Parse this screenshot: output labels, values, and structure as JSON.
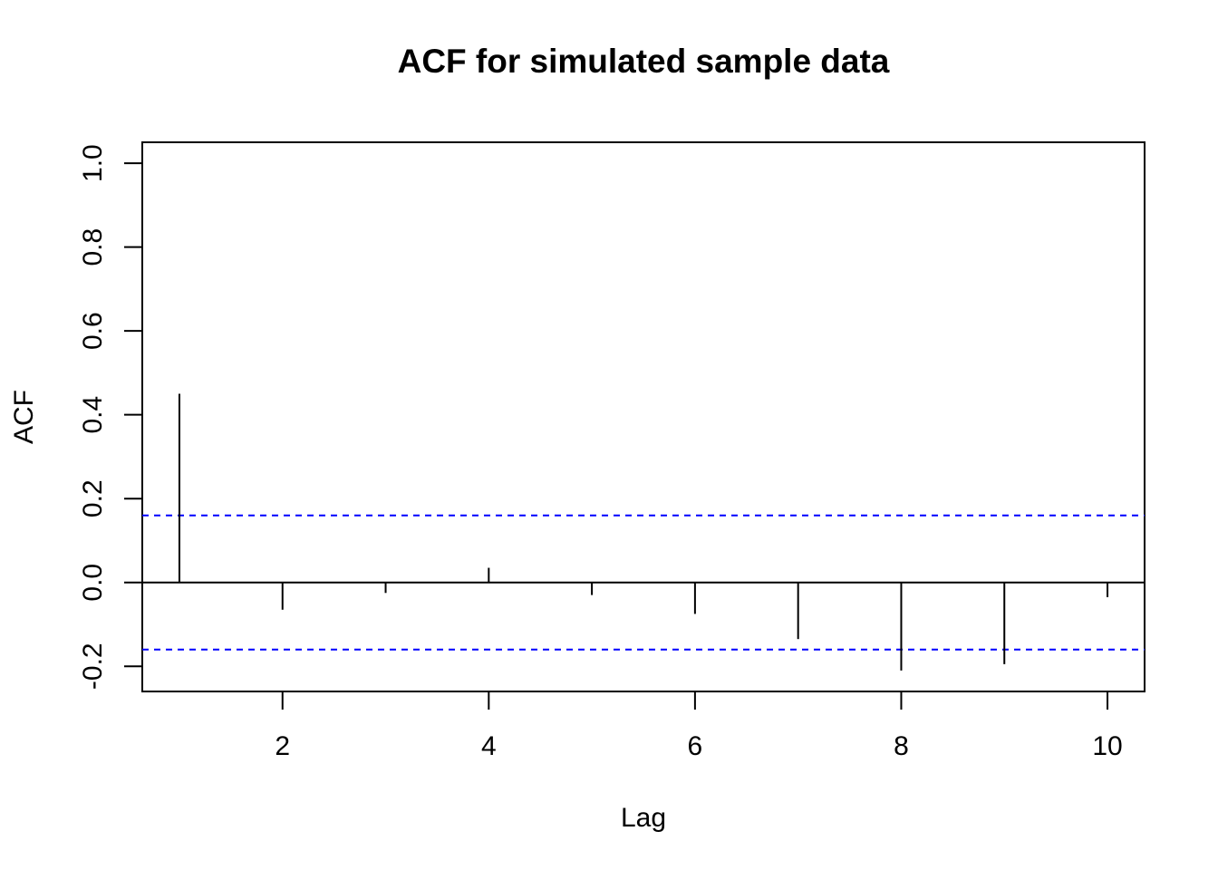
{
  "chart_data": {
    "type": "bar",
    "title": "ACF for simulated sample data",
    "xlabel": "Lag",
    "ylabel": "ACF",
    "x": [
      1,
      2,
      3,
      4,
      5,
      6,
      7,
      8,
      9,
      10
    ],
    "values": [
      0.45,
      -0.065,
      -0.025,
      0.035,
      -0.03,
      -0.075,
      -0.135,
      -0.21,
      -0.195,
      -0.035
    ],
    "xlim": [
      0.64,
      10.36
    ],
    "ylim": [
      -0.26,
      1.05
    ],
    "x_ticks": [
      2,
      4,
      6,
      8,
      10
    ],
    "y_ticks": [
      -0.2,
      0.0,
      0.2,
      0.4,
      0.6,
      0.8,
      1.0
    ],
    "y_tick_labels": [
      "-0.2",
      "0.0",
      "0.2",
      "0.4",
      "0.6",
      "0.8",
      "1.0"
    ],
    "confidence_bounds": [
      0.16,
      -0.16
    ],
    "confidence_color": "#0000ff",
    "bar_color": "#000000",
    "grid": false,
    "legend": "none"
  }
}
